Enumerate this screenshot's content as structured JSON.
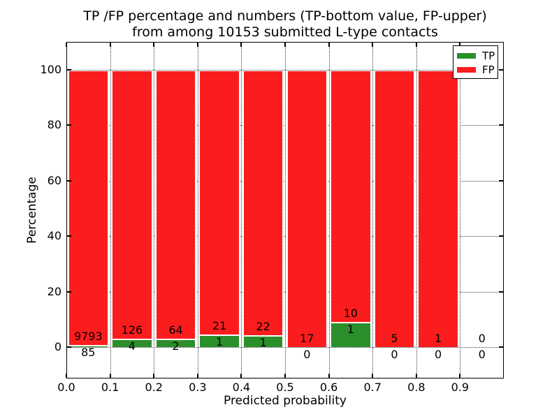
{
  "chart_data": {
    "type": "bar",
    "stacked": true,
    "normalized_to_percent": true,
    "title_line1": "TP /FP percentage and numbers (TP-bottom value, FP-upper)",
    "title_line2": "from among 10153 submitted L-type contacts",
    "xlabel": "Predicted probability",
    "ylabel": "Percentage",
    "xlim": [
      0.0,
      1.0
    ],
    "ylim": [
      -11.3,
      110.1
    ],
    "grid": "dotted",
    "x_tick_labels": [
      "0.0",
      "0.1",
      "0.2",
      "0.3",
      "0.4",
      "0.5",
      "0.6",
      "0.7",
      "0.8",
      "0.9"
    ],
    "y_tick_labels": [
      "0",
      "20",
      "40",
      "60",
      "80",
      "100"
    ],
    "y_tick_values": [
      0,
      20,
      40,
      60,
      80,
      100
    ],
    "legend": {
      "position": "upper right",
      "items": [
        {
          "label": "TP",
          "color": "#2b8f2b"
        },
        {
          "label": "FP",
          "color": "#fb1d1d"
        }
      ]
    },
    "colors": {
      "tp": "#2b8f2b",
      "fp": "#fb1d1d",
      "bar_edge": "#ffffff"
    },
    "bins": [
      {
        "range": [
          0.0,
          0.1
        ],
        "tp": 85,
        "fp": 9793
      },
      {
        "range": [
          0.1,
          0.2
        ],
        "tp": 4,
        "fp": 126
      },
      {
        "range": [
          0.2,
          0.3
        ],
        "tp": 2,
        "fp": 64
      },
      {
        "range": [
          0.3,
          0.4
        ],
        "tp": 1,
        "fp": 21
      },
      {
        "range": [
          0.4,
          0.5
        ],
        "tp": 1,
        "fp": 22
      },
      {
        "range": [
          0.5,
          0.6
        ],
        "tp": 0,
        "fp": 17
      },
      {
        "range": [
          0.6,
          0.7
        ],
        "tp": 1,
        "fp": 10
      },
      {
        "range": [
          0.7,
          0.8
        ],
        "tp": 0,
        "fp": 5
      },
      {
        "range": [
          0.8,
          0.9
        ],
        "tp": 0,
        "fp": 1
      },
      {
        "range": [
          0.9,
          1.0
        ],
        "tp": 0,
        "fp": 0
      }
    ]
  }
}
